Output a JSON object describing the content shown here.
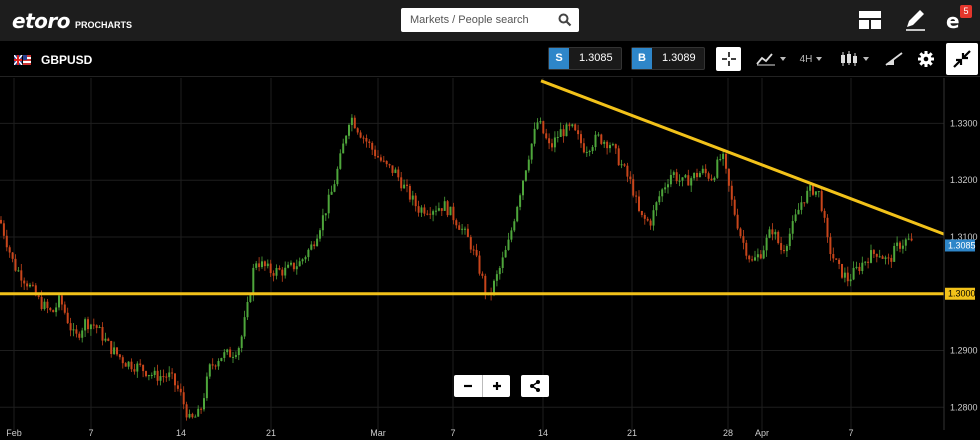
{
  "header": {
    "logo_text": "etoro",
    "logo_sub": "PROCHARTS",
    "search_placeholder": "Markets / People search",
    "notification_count": "5"
  },
  "toolbar": {
    "symbol": "GBPUSD",
    "sell_label": "S",
    "sell_price": "1.3085",
    "buy_label": "B",
    "buy_price": "1.3089",
    "timeframe": "4H"
  },
  "colors": {
    "background": "#000000",
    "candle_up": "#4ea63b",
    "candle_down": "#c8451b",
    "trendline": "#f2c21a",
    "price_accent": "#2e86c9"
  },
  "chart_data": {
    "type": "candlestick",
    "instrument": "GBPUSD",
    "timeframe": "4H",
    "ylim": [
      1.276,
      1.338
    ],
    "y_ticks": [
      "1.3300",
      "1.3200",
      "1.3100",
      "1.2900",
      "1.2800"
    ],
    "x_ticks": [
      "Feb",
      "7",
      "14",
      "21",
      "Mar",
      "7",
      "14",
      "21",
      "28",
      "Apr",
      "7"
    ],
    "current_price_label": "1.3085",
    "current_price": 1.3085,
    "support_label": "1.3000",
    "support_level": 1.3,
    "resistance_trendline": {
      "start": {
        "date": "Mar 14",
        "price": 1.3375
      },
      "end_price": 1.3105
    },
    "close_path": [
      [
        0,
        1.313
      ],
      [
        14,
        1.305
      ],
      [
        27,
        1.302
      ],
      [
        40,
        1.2985
      ],
      [
        52,
        1.2965
      ],
      [
        60,
        1.299
      ],
      [
        75,
        1.292
      ],
      [
        85,
        1.295
      ],
      [
        95,
        1.2945
      ],
      [
        110,
        1.2905
      ],
      [
        125,
        1.288
      ],
      [
        140,
        1.287
      ],
      [
        155,
        1.2855
      ],
      [
        170,
        1.2855
      ],
      [
        180,
        1.2825
      ],
      [
        190,
        1.2775
      ],
      [
        200,
        1.279
      ],
      [
        210,
        1.287
      ],
      [
        220,
        1.289
      ],
      [
        232,
        1.2895
      ],
      [
        240,
        1.291
      ],
      [
        248,
        1.298
      ],
      [
        255,
        1.306
      ],
      [
        270,
        1.304
      ],
      [
        285,
        1.304
      ],
      [
        300,
        1.3055
      ],
      [
        312,
        1.3085
      ],
      [
        322,
        1.313
      ],
      [
        332,
        1.318
      ],
      [
        340,
        1.3235
      ],
      [
        350,
        1.3315
      ],
      [
        360,
        1.3285
      ],
      [
        372,
        1.3255
      ],
      [
        385,
        1.3225
      ],
      [
        395,
        1.3215
      ],
      [
        405,
        1.3185
      ],
      [
        418,
        1.315
      ],
      [
        430,
        1.315
      ],
      [
        445,
        1.3155
      ],
      [
        458,
        1.3125
      ],
      [
        470,
        1.309
      ],
      [
        480,
        1.304
      ],
      [
        488,
        1.299
      ],
      [
        498,
        1.3035
      ],
      [
        508,
        1.3085
      ],
      [
        518,
        1.3165
      ],
      [
        528,
        1.324
      ],
      [
        538,
        1.3305
      ],
      [
        550,
        1.3255
      ],
      [
        560,
        1.3285
      ],
      [
        572,
        1.329
      ],
      [
        585,
        1.3255
      ],
      [
        598,
        1.3275
      ],
      [
        610,
        1.3265
      ],
      [
        622,
        1.3225
      ],
      [
        632,
        1.319
      ],
      [
        640,
        1.3135
      ],
      [
        650,
        1.3125
      ],
      [
        660,
        1.3175
      ],
      [
        672,
        1.3215
      ],
      [
        682,
        1.3195
      ],
      [
        692,
        1.3205
      ],
      [
        702,
        1.3215
      ],
      [
        712,
        1.3205
      ],
      [
        722,
        1.3245
      ],
      [
        732,
        1.316
      ],
      [
        742,
        1.3095
      ],
      [
        752,
        1.3055
      ],
      [
        762,
        1.3075
      ],
      [
        772,
        1.3115
      ],
      [
        782,
        1.3075
      ],
      [
        792,
        1.3115
      ],
      [
        802,
        1.3165
      ],
      [
        812,
        1.3185
      ],
      [
        820,
        1.3175
      ],
      [
        828,
        1.3085
      ],
      [
        838,
        1.3045
      ],
      [
        848,
        1.3025
      ],
      [
        858,
        1.3045
      ],
      [
        868,
        1.3065
      ],
      [
        878,
        1.3075
      ],
      [
        888,
        1.3055
      ],
      [
        898,
        1.3085
      ],
      [
        908,
        1.3095
      ],
      [
        913,
        1.3085
      ]
    ]
  }
}
